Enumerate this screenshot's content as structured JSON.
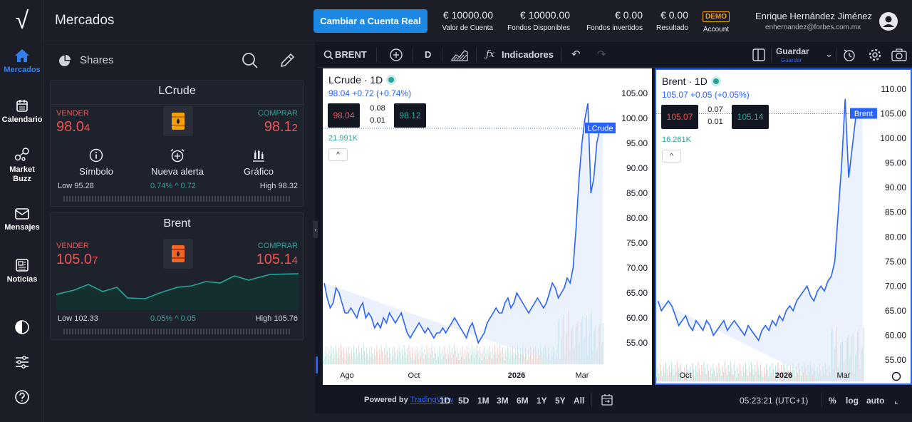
{
  "rail": {
    "logo": "√",
    "items": [
      {
        "label": "Mercados"
      },
      {
        "label": "Calendario"
      },
      {
        "label": "Market Buzz"
      },
      {
        "label": "Mensajes"
      },
      {
        "label": "Noticias"
      }
    ]
  },
  "header": {
    "title": "Mercados",
    "cta": "Cambiar a Cuenta Real",
    "stats": [
      {
        "value": "€ 10000.00",
        "label": "Valor de Cuenta"
      },
      {
        "value": "€ 10000.00",
        "label": "Fondos Disponibles"
      },
      {
        "value": "€ 0.00",
        "label": "Fondos invertidos"
      },
      {
        "value": "€ 0.00",
        "label": "Resultado"
      },
      {
        "value": "DEMO",
        "label": "Account"
      }
    ],
    "user_name": "Enrique Hernández Jiménez",
    "user_email": "enhernandez@forbes.com.mx"
  },
  "panel": {
    "tab_label": "Shares",
    "cards": [
      {
        "name": "LCrude",
        "sell_label": "VENDER",
        "sell_main": "98.0",
        "sell_last": "4",
        "buy_label": "COMPRAR",
        "buy_main": "98.1",
        "buy_last": "2",
        "actions": [
          "Símbolo",
          "Nueva alerta",
          "Gráfico"
        ],
        "low": "Low 95.28",
        "change": "0.74%",
        "change_abs": "0.72",
        "high": "High 98.32"
      },
      {
        "name": "Brent",
        "sell_label": "VENDER",
        "sell_main": "105.0",
        "sell_last": "7",
        "buy_label": "COMPRAR",
        "buy_main": "105.1",
        "buy_last": "4",
        "low": "Low 102.33",
        "change": "0.05%",
        "change_abs": "0.05",
        "high": "High 105.76"
      }
    ]
  },
  "toolbar": {
    "symbol": "BRENT",
    "interval": "D",
    "indicators": "Indicadores",
    "save": "Guardar",
    "save_sub": "Guardar"
  },
  "charts": [
    {
      "title": "LCrude · 1D",
      "change": "98.04 +0.72 (+0.74%)",
      "sell": "98.04",
      "spread_top": "0.08",
      "spread_bottom": "0.01",
      "buy": "98.12",
      "volume": "21.991K",
      "price_tag": "LCrude",
      "y_ticks": [
        "105.00",
        "100.00",
        "95.00",
        "90.00",
        "85.00",
        "80.00",
        "75.00",
        "70.00",
        "65.00",
        "60.00",
        "55.00"
      ],
      "x_ticks": [
        "Ago",
        "Oct",
        "2026",
        "Mar"
      ],
      "series": [
        67,
        64,
        62,
        63,
        66,
        65,
        63,
        61,
        61,
        62,
        61,
        60,
        62,
        63,
        60,
        61,
        60,
        58,
        59,
        58,
        60,
        59,
        61,
        60,
        59,
        60,
        61,
        59,
        57,
        56,
        57,
        58,
        59,
        58,
        57,
        58,
        57,
        56,
        57,
        57,
        58,
        57,
        58,
        59,
        60,
        59,
        58,
        57,
        56,
        58,
        59,
        57,
        55,
        56,
        57,
        59,
        60,
        61,
        62,
        61,
        61,
        63,
        64,
        62,
        63,
        65,
        64,
        63,
        62,
        61,
        62,
        63,
        64,
        63,
        62,
        63,
        65,
        67,
        66,
        64,
        65,
        66,
        68,
        67,
        70,
        78,
        88,
        95,
        100,
        103,
        85,
        88,
        95,
        98,
        98
      ]
    },
    {
      "title": "Brent · 1D",
      "change": "105.07 +0.05 (+0.05%)",
      "sell": "105.07",
      "spread_top": "0.07",
      "spread_bottom": "0.01",
      "buy": "105.14",
      "volume": "16.261K",
      "price_tag": "Brent",
      "y_ticks": [
        "110.00",
        "105.00",
        "100.00",
        "95.00",
        "90.00",
        "85.00",
        "80.00",
        "75.00",
        "70.00",
        "65.00",
        "60.00",
        "55.00"
      ],
      "x_ticks": [
        "Oct",
        "2026",
        "Mar"
      ],
      "series": [
        67,
        65,
        66,
        67,
        66,
        64,
        62,
        63,
        64,
        62,
        61,
        63,
        62,
        61,
        63,
        62,
        60,
        61,
        62,
        63,
        61,
        62,
        63,
        62,
        61,
        60,
        62,
        61,
        60,
        59,
        61,
        62,
        61,
        63,
        62,
        64,
        63,
        65,
        66,
        65,
        67,
        68,
        69,
        70,
        68,
        67,
        69,
        70,
        69,
        71,
        72,
        75,
        85,
        95,
        108,
        92,
        98,
        104,
        105,
        105
      ]
    }
  ],
  "bottom": {
    "powered": "Powered by",
    "powered_link": "TradingView",
    "ranges": [
      "1D",
      "5D",
      "1M",
      "3M",
      "6M",
      "1Y",
      "5Y",
      "All"
    ],
    "time": "05:23:21 (UTC+1)",
    "pct": "%",
    "log": "log",
    "auto": "auto"
  }
}
